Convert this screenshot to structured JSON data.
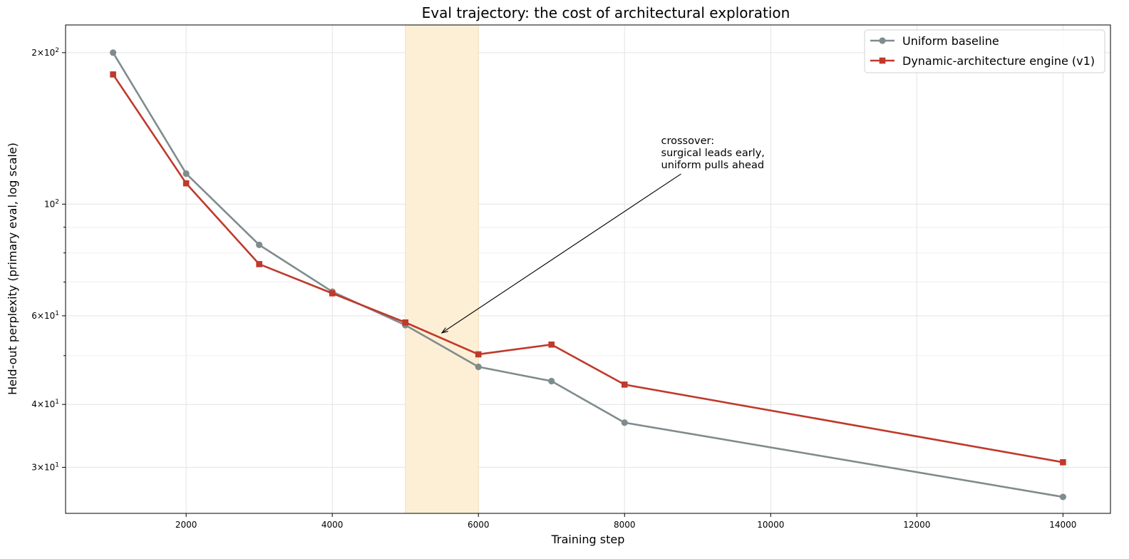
{
  "chart_data": {
    "type": "line",
    "title": "Eval trajectory: the cost of architectural exploration",
    "xlabel": "Training step",
    "ylabel": "Held-out perplexity (primary eval, log scale)",
    "xlim": [
      350,
      14650
    ],
    "ylim": [
      24.3,
      227
    ],
    "yscale": "log",
    "grid": true,
    "legend": "top-right",
    "x_ticks": [
      2000,
      4000,
      6000,
      8000,
      10000,
      12000,
      14000
    ],
    "y_ticks": [
      {
        "value": 30,
        "base": "3",
        "exp": "1"
      },
      {
        "value": 40,
        "base": "4",
        "exp": "1"
      },
      {
        "value": 60,
        "base": "6",
        "exp": "1"
      },
      {
        "value": 100,
        "base": "",
        "exp": "2"
      },
      {
        "value": 200,
        "base": "2",
        "exp": "2"
      }
    ],
    "y_minor_ticks": [
      50,
      70,
      80,
      90
    ],
    "highlight_span": {
      "x0": 5000,
      "x1": 6000,
      "color": "#fdefd6"
    },
    "series": [
      {
        "name": "Uniform baseline",
        "color": "#7f8c8d",
        "marker": "circle",
        "x": [
          1000,
          2000,
          3000,
          4000,
          5000,
          6000,
          7000,
          8000,
          14000
        ],
        "y": [
          200,
          115,
          83,
          67,
          57.5,
          47.5,
          44.5,
          36.8,
          26.2
        ]
      },
      {
        "name": "Dynamic-architecture engine (v1)",
        "color": "#c0392b",
        "marker": "square",
        "x": [
          1000,
          2000,
          3000,
          4000,
          5000,
          6000,
          7000,
          8000,
          14000
        ],
        "y": [
          181,
          110,
          76,
          66.5,
          58.2,
          50.3,
          52.6,
          43.8,
          30.7
        ]
      }
    ],
    "annotation": {
      "lines": [
        "crossover:",
        "surgical leads early,",
        "uniform pulls ahead"
      ],
      "text_at": [
        8500,
        125
      ],
      "arrow_to": [
        5500,
        55.5
      ]
    }
  }
}
